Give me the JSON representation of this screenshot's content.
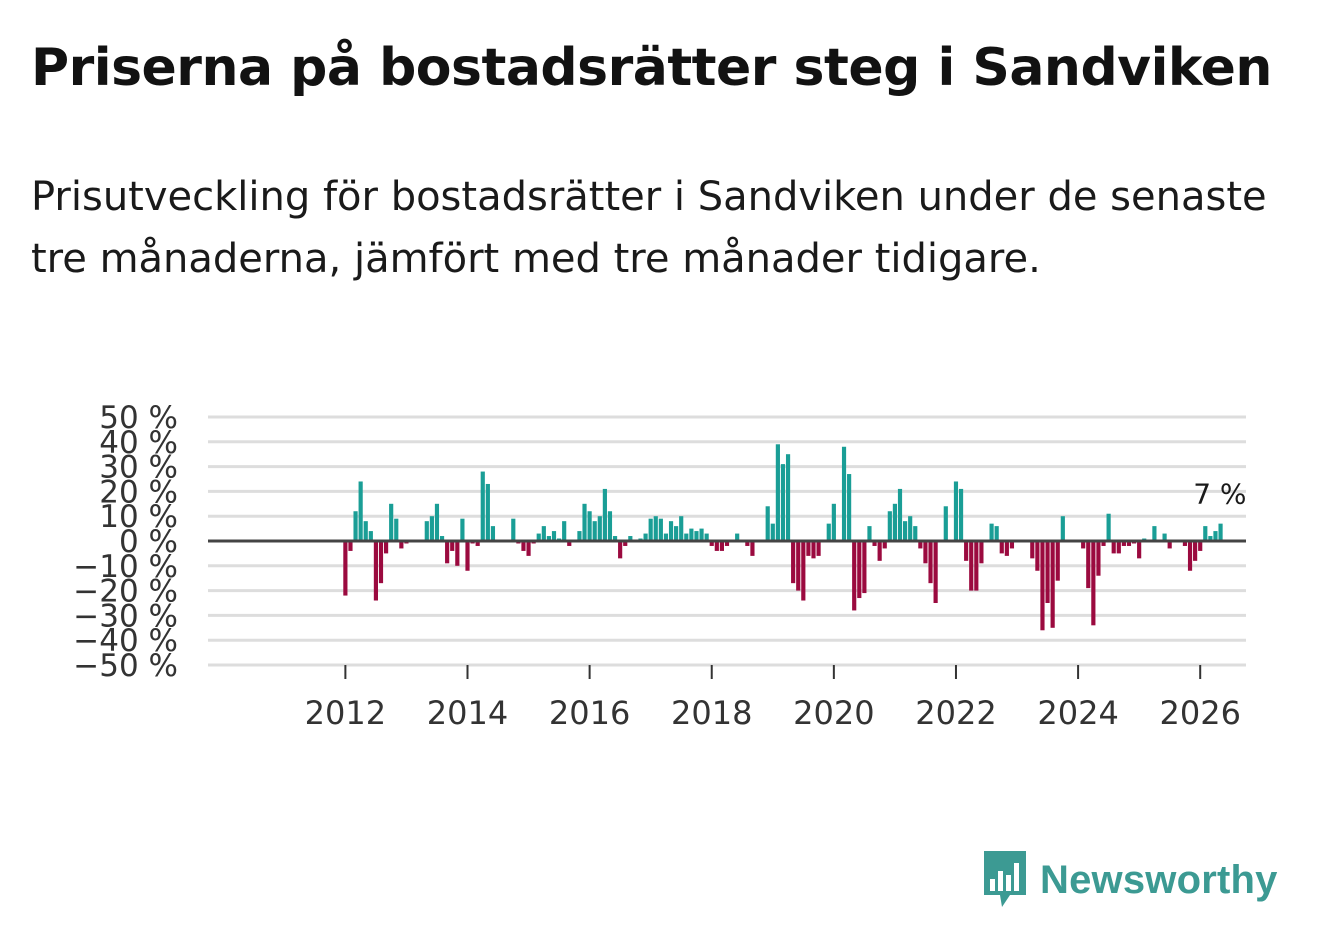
{
  "title": "Priserna på bostadsrätter steg i Sandviken",
  "subtitle": "Prisutveckling för bostadsrätter i Sandviken under de senaste tre månaderna, jämfört med tre månader tidigare.",
  "brand": {
    "name": "Newsworthy",
    "color": "#3c9a93"
  },
  "colors": {
    "positive": "#1a9e96",
    "negative": "#9b0a3f",
    "grid": "#dddddd",
    "zero": "#444444"
  },
  "chart_data": {
    "type": "bar",
    "title": "Priserna på bostadsrätter steg i Sandviken",
    "ylabel": "",
    "xlabel": "",
    "ylim": [
      -50,
      50
    ],
    "y_ticks": [
      50,
      40,
      30,
      20,
      10,
      0,
      -10,
      -20,
      -30,
      -40,
      -50
    ],
    "y_tick_labels": [
      "50 %",
      "40 %",
      "30 %",
      "20 %",
      "10 %",
      "0 %",
      "−10 %",
      "−20 %",
      "−30 %",
      "−40 %",
      "−50 %"
    ],
    "x_ticks": [
      2012,
      2014,
      2016,
      2018,
      2020,
      2022,
      2024,
      2026
    ],
    "x_tick_labels": [
      "2012",
      "2014",
      "2016",
      "2018",
      "2020",
      "2022",
      "2024",
      "2026"
    ],
    "x_range": [
      2009.75,
      2026.75
    ],
    "start": "2012-01",
    "frequency": "monthly",
    "last_value_label": "7 %",
    "values": [
      -22,
      -4,
      12,
      24,
      8,
      4,
      -24,
      -17,
      -5,
      15,
      9,
      -3,
      -1,
      0,
      0,
      0,
      8,
      10,
      15,
      2,
      -9,
      -4,
      -10,
      9,
      -12,
      -1,
      -2,
      28,
      23,
      6,
      0,
      0,
      0,
      9,
      -1,
      -4,
      -6,
      -1,
      3,
      6,
      2,
      4,
      1,
      8,
      -2,
      0,
      4,
      15,
      12,
      8,
      10,
      21,
      12,
      2,
      -7,
      -2,
      2,
      0,
      1,
      3,
      9,
      10,
      9,
      3,
      8,
      6,
      10,
      3,
      5,
      4,
      5,
      3,
      -2,
      -4,
      -4,
      -2,
      0,
      3,
      0,
      -2,
      -6,
      0,
      0,
      14,
      7,
      39,
      31,
      35,
      -17,
      -20,
      -24,
      -6,
      -7,
      -6,
      0,
      7,
      15,
      0,
      38,
      27,
      -28,
      -23,
      -21,
      6,
      -2,
      -8,
      -3,
      12,
      15,
      21,
      8,
      10,
      6,
      -3,
      -9,
      -17,
      -25,
      0,
      14,
      0,
      24,
      21,
      -8,
      -20,
      -20,
      -9,
      0,
      7,
      6,
      -5,
      -6,
      -3,
      0,
      0,
      0,
      -7,
      -12,
      -36,
      -25,
      -35,
      -16,
      10,
      0,
      0,
      0,
      -3,
      -19,
      -34,
      -14,
      -2,
      11,
      -5,
      -5,
      -2,
      -2,
      -1,
      -7,
      1,
      0,
      6,
      0,
      3,
      -3,
      0,
      0,
      -2,
      -12,
      -8,
      -4,
      6,
      2,
      4,
      7
    ]
  }
}
